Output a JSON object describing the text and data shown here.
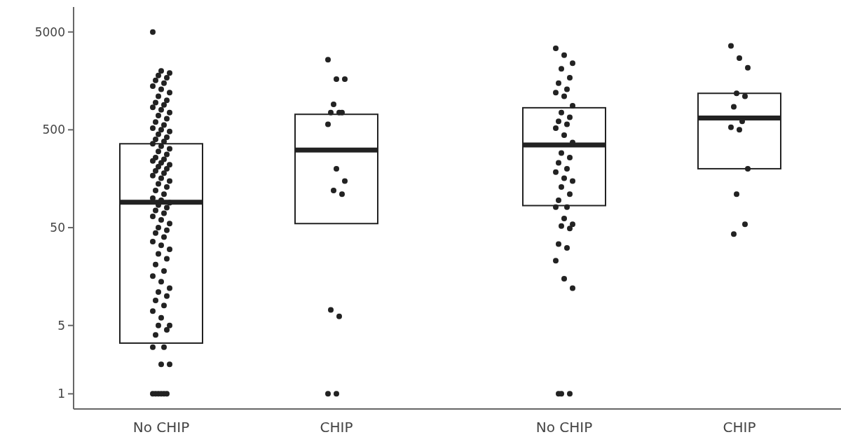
{
  "chart_data": {
    "type": "box",
    "categories": [
      "No CHIP",
      "CHIP",
      "No CHIP",
      "CHIP"
    ],
    "log": "y",
    "ylim": [
      0.7,
      9000
    ],
    "yticks": [
      1,
      5,
      50,
      500,
      5000
    ],
    "series": [
      {
        "color": "#222222",
        "boxes": [
          {
            "low": 3.3,
            "q1": 3.3,
            "median": 91,
            "q3": 360,
            "high": 360,
            "outliers": [
              5000,
              2000,
              1900,
              1800,
              1700,
              1600,
              1500,
              1400,
              1300,
              1200,
              1100,
              1000,
              950,
              900,
              850,
              800,
              750,
              700,
              650,
              600,
              560,
              520,
              500,
              480,
              450,
              420,
              400,
              380,
              360,
              340,
              320,
              300,
              280,
              260,
              250,
              240,
              230,
              220,
              210,
              200,
              190,
              180,
              170,
              160,
              150,
              140,
              130,
              120,
              110,
              100,
              95,
              90,
              85,
              80,
              75,
              70,
              65,
              60,
              55,
              50,
              47,
              44,
              40,
              36,
              33,
              30,
              27,
              24,
              21,
              18,
              16,
              14,
              12,
              11,
              10,
              9,
              8,
              7,
              6,
              5,
              5,
              4.5,
              4,
              3,
              3,
              2,
              2,
              1,
              1,
              1,
              1,
              1,
              1
            ]
          },
          {
            "low": 55,
            "q1": 55,
            "median": 310,
            "q3": 720,
            "high": 720,
            "outliers": [
              2600,
              1650,
              1650,
              910,
              750,
              750,
              750,
              570,
              200,
              150,
              120,
              110,
              7.2,
              6.2,
              1,
              1
            ]
          },
          {
            "low": 84,
            "q1": 84,
            "median": 350,
            "q3": 840,
            "high": 840,
            "outliers": [
              3400,
              2900,
              2400,
              2100,
              1700,
              1500,
              1300,
              1200,
              1100,
              880,
              750,
              670,
              610,
              570,
              520,
              440,
              370,
              290,
              260,
              230,
              200,
              185,
              160,
              150,
              130,
              110,
              95,
              81,
              81,
              62,
              54,
              52,
              49,
              34,
              31,
              23,
              15,
              12,
              1,
              1,
              1
            ]
          },
          {
            "low": 200,
            "q1": 200,
            "median": 660,
            "q3": 1180,
            "high": 1180,
            "outliers": [
              3600,
              2700,
              2150,
              1180,
              1100,
              860,
              610,
              530,
              500,
              200,
              110,
              54,
              43
            ]
          }
        ]
      }
    ]
  }
}
